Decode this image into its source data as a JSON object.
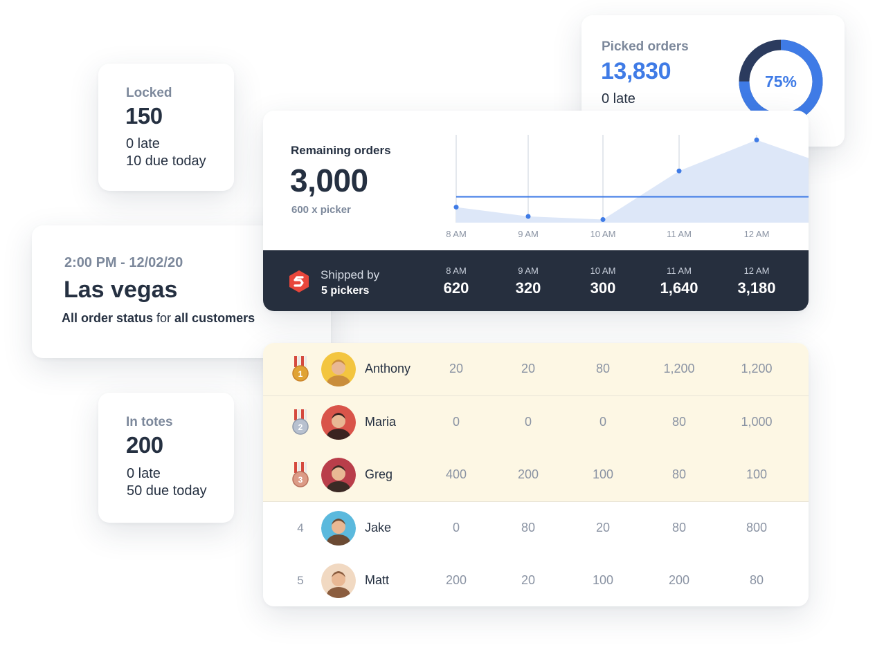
{
  "locked": {
    "label": "Locked",
    "value": "150",
    "late": "0 late",
    "due": "10 due today"
  },
  "picked": {
    "label": "Picked orders",
    "value": "13,830",
    "late": "0 late",
    "percent_label": "75%",
    "percent": 75,
    "colors": {
      "progress": "#3f7be6",
      "remaining": "#2b3b5e"
    }
  },
  "location": {
    "datetime": "2:00 PM - 12/02/20",
    "city": "Las vegas",
    "status_bold1": "All order status",
    "status_mid": " for ",
    "status_bold2": "all customers"
  },
  "totes": {
    "label": "In totes",
    "value": "200",
    "late": "0 late",
    "due": "50 due today"
  },
  "remaining": {
    "title": "Remaining orders",
    "value": "3,000",
    "subtitle": "600 x picker"
  },
  "chart_data": {
    "type": "area",
    "x": [
      "8 AM",
      "9 AM",
      "10 AM",
      "11 AM",
      "12 AM"
    ],
    "series": [
      {
        "values": [
          300,
          120,
          60,
          1000,
          1600
        ]
      }
    ],
    "target": 500,
    "ylim": [
      0,
      1900
    ],
    "grid": "vertical",
    "colors": {
      "line": "#3f7be6",
      "fill": "#dde7f8"
    }
  },
  "shipped": {
    "label": "Shipped by",
    "pickers": "5 pickers",
    "columns": [
      {
        "time": "8 AM",
        "value": "620"
      },
      {
        "time": "9 AM",
        "value": "320"
      },
      {
        "time": "10 AM",
        "value": "300"
      },
      {
        "time": "11 AM",
        "value": "1,640"
      },
      {
        "time": "12 AM",
        "value": "3,180"
      }
    ]
  },
  "leaderboard": [
    {
      "rank": "1",
      "name": "Anthony",
      "values": [
        "20",
        "20",
        "80",
        "1,200",
        "1,200"
      ],
      "medal": "gold"
    },
    {
      "rank": "2",
      "name": "Maria",
      "values": [
        "0",
        "0",
        "0",
        "80",
        "1,000"
      ],
      "medal": "silver"
    },
    {
      "rank": "3",
      "name": "Greg",
      "values": [
        "400",
        "200",
        "100",
        "80",
        "100"
      ],
      "medal": "bronze"
    },
    {
      "rank": "4",
      "name": "Jake",
      "values": [
        "0",
        "80",
        "20",
        "80",
        "800"
      ],
      "medal": ""
    },
    {
      "rank": "5",
      "name": "Matt",
      "values": [
        "200",
        "20",
        "100",
        "200",
        "80"
      ],
      "medal": ""
    }
  ]
}
